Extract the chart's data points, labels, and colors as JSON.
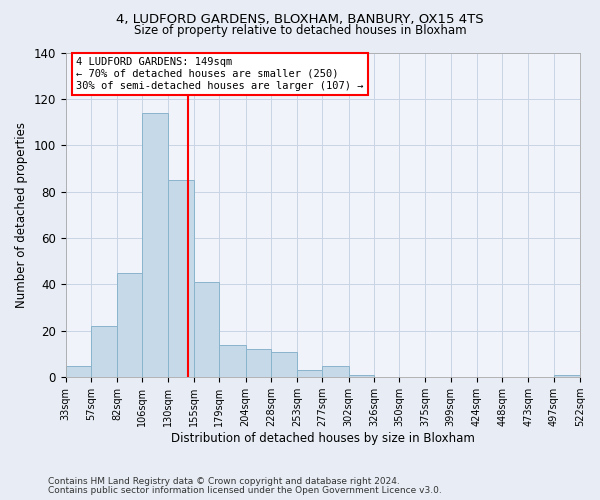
{
  "title1": "4, LUDFORD GARDENS, BLOXHAM, BANBURY, OX15 4TS",
  "title2": "Size of property relative to detached houses in Bloxham",
  "xlabel": "Distribution of detached houses by size in Bloxham",
  "ylabel": "Number of detached properties",
  "footer1": "Contains HM Land Registry data © Crown copyright and database right 2024.",
  "footer2": "Contains public sector information licensed under the Open Government Licence v3.0.",
  "annotation_line1": "4 LUDFORD GARDENS: 149sqm",
  "annotation_line2": "← 70% of detached houses are smaller (250)",
  "annotation_line3": "30% of semi-detached houses are larger (107) →",
  "bar_color": "#c6d9e8",
  "bar_edge_color": "#8ab4cc",
  "vline_color": "red",
  "vline_x": 149,
  "bin_edges": [
    33,
    57,
    82,
    106,
    130,
    155,
    179,
    204,
    228,
    253,
    277,
    302,
    326,
    350,
    375,
    399,
    424,
    448,
    473,
    497,
    522
  ],
  "bar_heights": [
    5,
    22,
    45,
    114,
    85,
    41,
    14,
    12,
    11,
    3,
    5,
    1,
    0,
    0,
    0,
    0,
    0,
    0,
    0,
    1
  ],
  "tick_labels": [
    "33sqm",
    "57sqm",
    "82sqm",
    "106sqm",
    "130sqm",
    "155sqm",
    "179sqm",
    "204sqm",
    "228sqm",
    "253sqm",
    "277sqm",
    "302sqm",
    "326sqm",
    "350sqm",
    "375sqm",
    "399sqm",
    "424sqm",
    "448sqm",
    "473sqm",
    "497sqm",
    "522sqm"
  ],
  "ylim": [
    0,
    140
  ],
  "yticks": [
    0,
    20,
    40,
    60,
    80,
    100,
    120,
    140
  ],
  "background_color": "#e8edf5",
  "plot_bg_color": "#f0f4fa",
  "grid_color": "#c8d4e4"
}
